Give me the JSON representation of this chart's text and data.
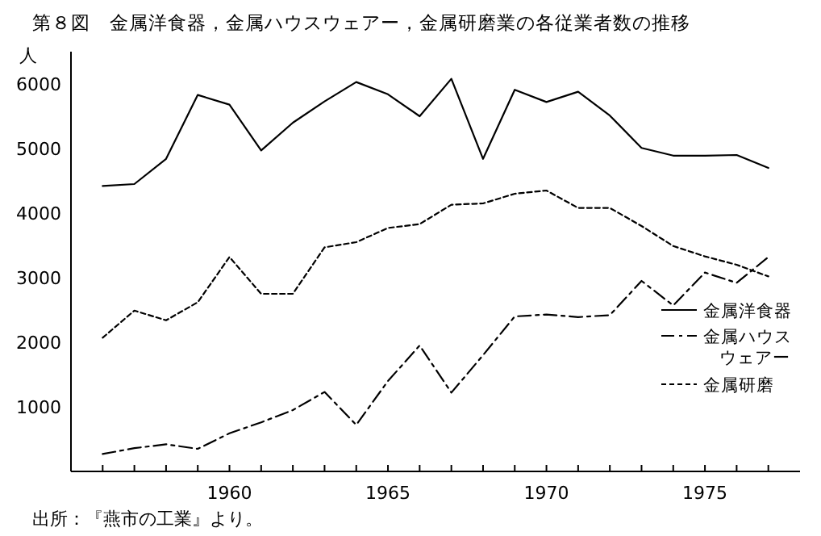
{
  "chart_data": {
    "type": "line",
    "title": "第８図　金属洋食器，金属ハウスウェアー，金属研磨業の各従業者数の推移",
    "ylabel": "人",
    "annotations": [
      "出所：『燕市の工業』より。"
    ],
    "x": [
      1956,
      1957,
      1958,
      1959,
      1960,
      1961,
      1962,
      1963,
      1964,
      1965,
      1966,
      1967,
      1968,
      1969,
      1970,
      1971,
      1972,
      1973,
      1974,
      1975,
      1976,
      1977
    ],
    "series": [
      {
        "name": "金属洋食器",
        "color": "#000000",
        "line_style": "solid",
        "values": [
          4420,
          4450,
          4840,
          5830,
          5680,
          4970,
          5400,
          5730,
          6030,
          5840,
          5500,
          6080,
          4840,
          5910,
          5720,
          5880,
          5510,
          5010,
          4890,
          4890,
          4900,
          4700
        ]
      },
      {
        "name": "金属ハウスウェアー",
        "color": "#000000",
        "line_style": "dashdot",
        "values": [
          270,
          360,
          420,
          350,
          590,
          760,
          950,
          1230,
          720,
          1400,
          1950,
          1220,
          1800,
          2400,
          2430,
          2390,
          2420,
          2950,
          2570,
          3080,
          2920,
          3320
        ]
      },
      {
        "name": "金属研磨",
        "color": "#000000",
        "line_style": "dashed",
        "values": [
          2070,
          2490,
          2340,
          2620,
          3320,
          2750,
          2750,
          3470,
          3550,
          3770,
          3830,
          4130,
          4150,
          4300,
          4350,
          4080,
          4080,
          3800,
          3490,
          3330,
          3200,
          3020
        ]
      }
    ],
    "xlim": [
      1955,
      1978
    ],
    "ylim": [
      0,
      6500
    ],
    "xticks": [
      {
        "value": 1956,
        "label": null
      },
      {
        "value": 1957,
        "label": null
      },
      {
        "value": 1958,
        "label": null
      },
      {
        "value": 1959,
        "label": null
      },
      1960,
      {
        "value": 1961,
        "label": null
      },
      {
        "value": 1962,
        "label": null
      },
      {
        "value": 1963,
        "label": null
      },
      {
        "value": 1964,
        "label": null
      },
      1965,
      {
        "value": 1966,
        "label": null
      },
      {
        "value": 1967,
        "label": null
      },
      {
        "value": 1968,
        "label": null
      },
      {
        "value": 1969,
        "label": null
      },
      1970,
      {
        "value": 1971,
        "label": null
      },
      {
        "value": 1972,
        "label": null
      },
      {
        "value": 1973,
        "label": null
      },
      {
        "value": 1974,
        "label": null
      },
      1975,
      {
        "value": 1976,
        "label": null
      },
      {
        "value": 1977,
        "label": null
      }
    ],
    "yticks": [
      1000,
      2000,
      3000,
      4000,
      5000,
      6000
    ],
    "grid": false,
    "legend": "bottom right"
  }
}
